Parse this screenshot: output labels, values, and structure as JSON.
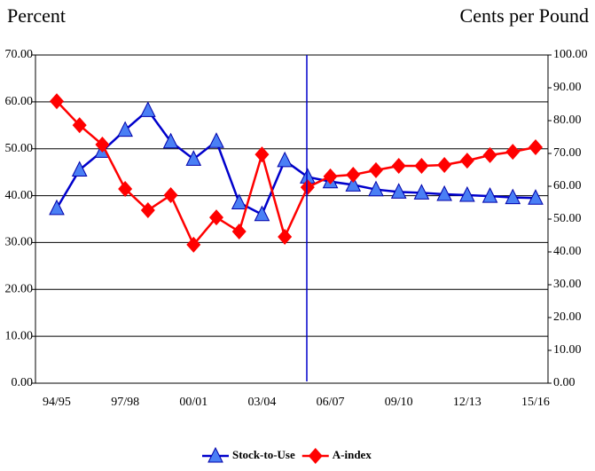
{
  "chart_data": {
    "type": "line",
    "y_label": "Percent",
    "y2_label": "Cents per Pound",
    "categories": [
      "94/95",
      null,
      null,
      "97/98",
      null,
      null,
      "00/01",
      null,
      null,
      "03/04",
      null,
      null,
      "06/07",
      null,
      null,
      "09/10",
      null,
      null,
      "12/13",
      null,
      null,
      "15/16"
    ],
    "series": [
      {
        "name": "Stock-to-Use",
        "color": "#0000cc",
        "marker_color": "#4a7ff5",
        "marker": "triangle",
        "values": [
          37.3,
          45.5,
          49.5,
          54.0,
          58.2,
          51.5,
          47.8,
          51.6,
          38.5,
          36.0,
          47.5,
          44.0,
          43.0,
          42.3,
          41.3,
          40.8,
          40.6,
          40.3,
          40.1,
          39.9,
          39.6,
          39.5
        ]
      },
      {
        "name": "A-index",
        "color": "#ff0000",
        "marker_color": "#ff0000",
        "marker": "diamond",
        "axis": "y2",
        "values": [
          85.9,
          78.6,
          72.7,
          59.2,
          52.7,
          57.3,
          42.2,
          50.5,
          46.2,
          69.7,
          44.6,
          59.7,
          63.0,
          63.5,
          64.9,
          66.2,
          66.2,
          66.5,
          67.8,
          69.5,
          70.5,
          71.9
        ]
      }
    ],
    "ylim": [
      0,
      70
    ],
    "yticks": [
      {
        "value": 0,
        "label": "0.00"
      },
      {
        "value": 10,
        "label": "10.00"
      },
      {
        "value": 20,
        "label": "20.00"
      },
      {
        "value": 30,
        "label": "30.00"
      },
      {
        "value": 40,
        "label": "40.00"
      },
      {
        "value": 50,
        "label": "50.00"
      },
      {
        "value": 60,
        "label": "60.00"
      },
      {
        "value": 70,
        "label": "70.00"
      }
    ],
    "y2lim": [
      0,
      100
    ],
    "y2ticks": [
      {
        "value": 0,
        "label": "0.00"
      },
      {
        "value": 10,
        "label": "10.00"
      },
      {
        "value": 20,
        "label": "20.00"
      },
      {
        "value": 30,
        "label": "30.00"
      },
      {
        "value": 40,
        "label": "40.00"
      },
      {
        "value": 50,
        "label": "50.00"
      },
      {
        "value": 60,
        "label": "60.00"
      },
      {
        "value": 70,
        "label": "70.00"
      },
      {
        "value": 80,
        "label": "80.00"
      },
      {
        "value": 90,
        "label": "90.00"
      },
      {
        "value": 100,
        "label": "100.00"
      }
    ],
    "grid": true,
    "legend": "bottom"
  }
}
